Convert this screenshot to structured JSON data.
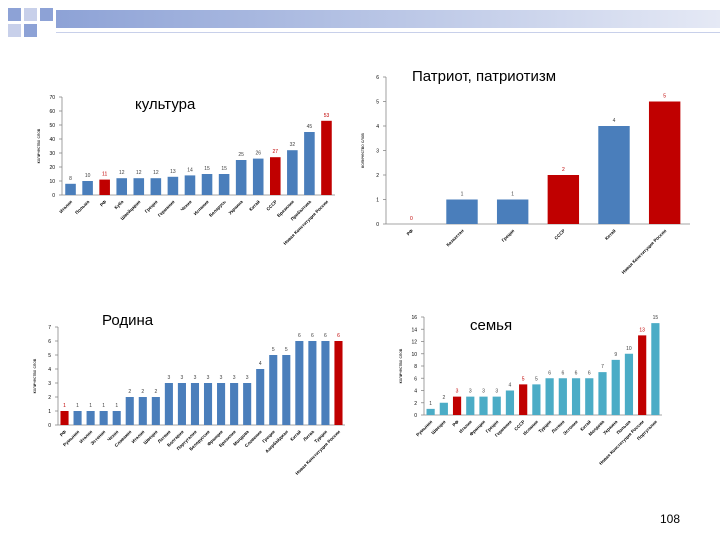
{
  "page_number": "108",
  "colors": {
    "blue": "#4a7ebb",
    "red": "#c00000",
    "teal": "#4bacc6",
    "value_label": "#404040"
  },
  "chart_data": [
    {
      "type": "bar",
      "title": "культура",
      "ylabel": "количество слов",
      "ylim": [
        0,
        70
      ],
      "yticks": [
        0,
        10,
        20,
        30,
        40,
        50,
        60,
        70
      ],
      "categories": [
        "Италия",
        "Польша",
        "РФ",
        "Куба",
        "Швейцария",
        "Греция",
        "Германия",
        "Чехия",
        "Испания",
        "Беларусь",
        "Украина",
        "Китай",
        "СССР",
        "Бразилия",
        "Прибалтика",
        "Новая Конституция России"
      ],
      "values": [
        8,
        10,
        11,
        12,
        12,
        12,
        13,
        14,
        15,
        15,
        25,
        26,
        27,
        32,
        45,
        53
      ],
      "highlight": [
        2,
        12,
        15
      ]
    },
    {
      "type": "bar",
      "title": "Патриот, патриотизм",
      "ylabel": "количество слов",
      "ylim": [
        0,
        6
      ],
      "yticks": [
        0,
        1,
        2,
        3,
        4,
        5,
        6
      ],
      "categories": [
        "РФ",
        "Казахстан",
        "Греция",
        "СССР",
        "Китай",
        "Новая Конституция России"
      ],
      "values": [
        0,
        1,
        1,
        2,
        4,
        5
      ],
      "highlight": [
        0,
        3,
        5
      ]
    },
    {
      "type": "bar",
      "title": "Родина",
      "ylabel": "количество слов",
      "ylim": [
        0,
        7
      ],
      "yticks": [
        0,
        1,
        2,
        3,
        4,
        5,
        6,
        7
      ],
      "categories": [
        "РФ",
        "Румыния",
        "Италия",
        "Эстония",
        "Чехия",
        "Словакия",
        "Италия",
        "Швеция",
        "Латвия",
        "Болгария",
        "Португалия",
        "Белоруссия",
        "Франция",
        "Бразилия",
        "Молдова",
        "Словения",
        "Греция",
        "Азербайджан",
        "Китай",
        "Литва",
        "Турция",
        "Новая Конституция России"
      ],
      "values": [
        1,
        1,
        1,
        1,
        1,
        2,
        2,
        2,
        3,
        3,
        3,
        3,
        3,
        3,
        3,
        4,
        5,
        5,
        6,
        6,
        6,
        6
      ],
      "highlight": [
        0,
        21
      ]
    },
    {
      "type": "bar",
      "title": "семья",
      "ylabel": "количество слов",
      "ylim": [
        0,
        16
      ],
      "yticks": [
        0,
        2,
        4,
        6,
        8,
        10,
        12,
        14,
        16
      ],
      "categories": [
        "Румыния",
        "Швеция",
        "РФ",
        "Италия",
        "Франция",
        "Греция",
        "Германия",
        "СССР",
        "Испания",
        "Турция",
        "Латвия",
        "Эстония",
        "Китай",
        "Молдова",
        "Украина",
        "Польша",
        "Новая Конституция России",
        "Португалия"
      ],
      "values": [
        1,
        2,
        3,
        3,
        3,
        3,
        4,
        5,
        5,
        6,
        6,
        6,
        6,
        7,
        9,
        10,
        13,
        15
      ],
      "highlight": [
        2,
        7,
        16
      ]
    }
  ]
}
